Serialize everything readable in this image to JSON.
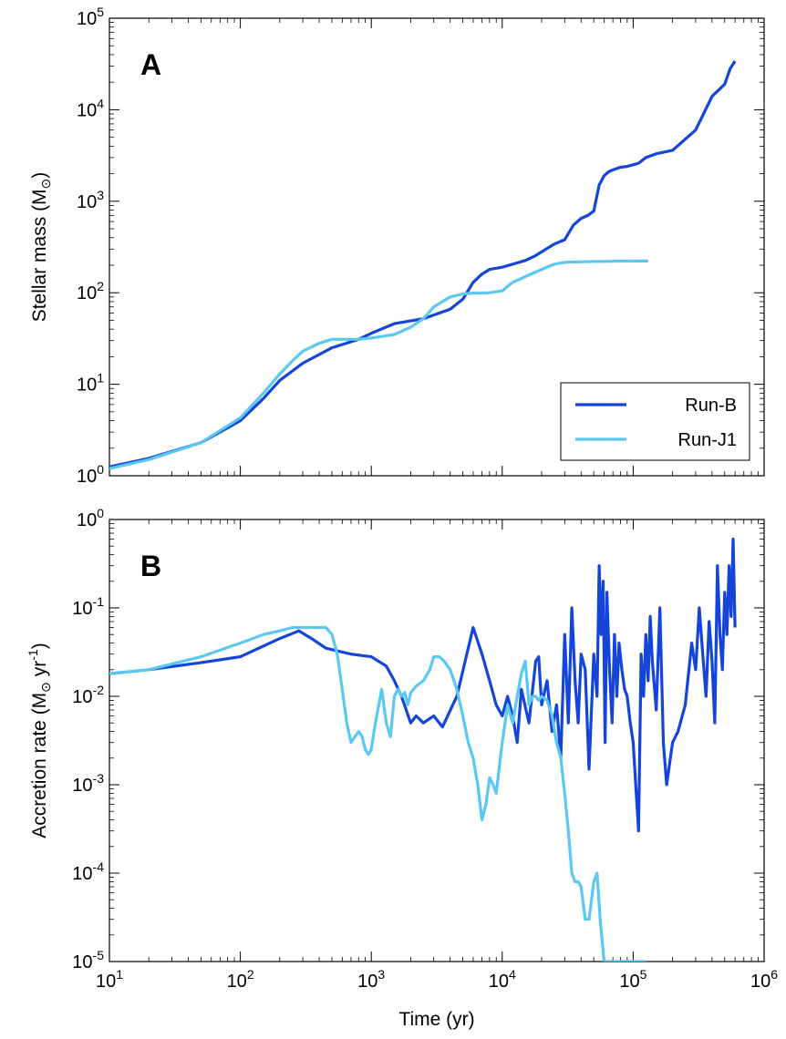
{
  "chart_data": [
    {
      "type": "line",
      "panel_label": "A",
      "xlabel": "",
      "ylabel_main": "Stellar mass (M",
      "ylabel_sub": "⊙",
      "ylabel_end": ")",
      "xscale": "log",
      "yscale": "log",
      "xlim": [
        10,
        1000000
      ],
      "ylim": [
        1,
        100000
      ],
      "yticks": [
        {
          "base": "10",
          "exp": "0"
        },
        {
          "base": "10",
          "exp": "1"
        },
        {
          "base": "10",
          "exp": "2"
        },
        {
          "base": "10",
          "exp": "3"
        },
        {
          "base": "10",
          "exp": "4"
        },
        {
          "base": "10",
          "exp": "5"
        }
      ],
      "legend_position": "bottom-right",
      "series": [
        {
          "name": "Run-B",
          "color": "#1444d8",
          "x": [
            10,
            20,
            50,
            100,
            150,
            200,
            300,
            500,
            800,
            1000,
            1500,
            2500,
            4000,
            5000,
            6000,
            7000,
            8000,
            10000,
            12000,
            15000,
            18000,
            20000,
            25000,
            30000,
            35000,
            40000,
            45000,
            50000,
            55000,
            60000,
            65000,
            70000,
            80000,
            90000,
            100000,
            110000,
            125000,
            150000,
            200000,
            300000,
            400000,
            500000,
            550000,
            600000
          ],
          "y": [
            1.25,
            1.55,
            2.3,
            4.0,
            7.0,
            11,
            17,
            25,
            31,
            36,
            46,
            52,
            66,
            85,
            130,
            160,
            180,
            190,
            205,
            225,
            255,
            280,
            340,
            380,
            550,
            650,
            700,
            780,
            1500,
            1900,
            2100,
            2200,
            2350,
            2400,
            2500,
            2600,
            3000,
            3300,
            3600,
            6000,
            14000,
            19000,
            28000,
            34000
          ]
        },
        {
          "name": "Run-J1",
          "color": "#5cc8f2",
          "x": [
            10,
            20,
            50,
            100,
            150,
            200,
            250,
            300,
            400,
            500,
            600,
            800,
            1000,
            1500,
            2000,
            2500,
            3000,
            4000,
            5000,
            6000,
            8000,
            10000,
            12000,
            15000,
            20000,
            25000,
            30000,
            40000,
            60000,
            100000,
            130000
          ],
          "y": [
            1.2,
            1.5,
            2.3,
            4.3,
            8.0,
            13,
            18,
            23,
            28,
            31,
            31,
            31,
            32,
            35,
            42,
            52,
            70,
            90,
            97,
            99,
            100,
            105,
            130,
            150,
            180,
            205,
            215,
            218,
            220,
            222,
            222
          ]
        }
      ]
    },
    {
      "type": "line",
      "panel_label": "B",
      "xlabel": "Time (yr)",
      "ylabel_main": "Accretion rate (M",
      "ylabel_sub": "⊙",
      "ylabel_end": " yr",
      "ylabel_sup": "-1",
      "ylabel_close": ")",
      "xscale": "log",
      "yscale": "log",
      "xlim": [
        10,
        1000000
      ],
      "ylim": [
        1e-05,
        1
      ],
      "xticks": [
        {
          "base": "10",
          "exp": "1"
        },
        {
          "base": "10",
          "exp": "2"
        },
        {
          "base": "10",
          "exp": "3"
        },
        {
          "base": "10",
          "exp": "4"
        },
        {
          "base": "10",
          "exp": "5"
        },
        {
          "base": "10",
          "exp": "6"
        }
      ],
      "yticks": [
        {
          "base": "10",
          "exp": "-5"
        },
        {
          "base": "10",
          "exp": "-4"
        },
        {
          "base": "10",
          "exp": "-3"
        },
        {
          "base": "10",
          "exp": "-2"
        },
        {
          "base": "10",
          "exp": "-1"
        },
        {
          "base": "10",
          "exp": "0"
        }
      ],
      "series": [
        {
          "name": "Run-B",
          "color": "#1444d8",
          "x": [
            10,
            20,
            50,
            100,
            200,
            280,
            350,
            450,
            700,
            1000,
            1300,
            1500,
            1700,
            2000,
            2200,
            2500,
            3000,
            3500,
            4500,
            6000,
            7000,
            8000,
            9000,
            10000,
            11000,
            12000,
            13000,
            14000,
            16000,
            18000,
            19000,
            20000,
            22000,
            24000,
            26000,
            28000,
            30000,
            32000,
            34000,
            36000,
            38000,
            40000,
            43000,
            46000,
            50000,
            53000,
            55000,
            57000,
            59000,
            61000,
            63000,
            66000,
            69000,
            72000,
            75000,
            78000,
            82000,
            86000,
            90000,
            95000,
            100000,
            110000,
            115000,
            120000,
            125000,
            130000,
            135000,
            140000,
            150000,
            160000,
            170000,
            180000,
            200000,
            220000,
            250000,
            280000,
            300000,
            320000,
            340000,
            360000,
            380000,
            400000,
            420000,
            440000,
            460000,
            480000,
            500000,
            520000,
            540000,
            560000,
            580000,
            600000
          ],
          "y": [
            0.018,
            0.02,
            0.024,
            0.028,
            0.045,
            0.055,
            0.045,
            0.035,
            0.03,
            0.028,
            0.022,
            0.015,
            0.01,
            0.005,
            0.006,
            0.005,
            0.006,
            0.0045,
            0.01,
            0.06,
            0.03,
            0.015,
            0.008,
            0.006,
            0.01,
            0.006,
            0.003,
            0.012,
            0.005,
            0.025,
            0.028,
            0.008,
            0.015,
            0.004,
            0.008,
            0.002,
            0.05,
            0.005,
            0.1,
            0.015,
            0.005,
            0.03,
            0.02,
            0.0015,
            0.03,
            0.01,
            0.3,
            0.05,
            0.2,
            0.003,
            0.15,
            0.02,
            0.005,
            0.05,
            0.01,
            0.04,
            0.02,
            0.012,
            0.01,
            0.005,
            0.003,
            0.0003,
            0.03,
            0.01,
            0.05,
            0.015,
            0.08,
            0.025,
            0.007,
            0.1,
            0.003,
            0.001,
            0.003,
            0.004,
            0.008,
            0.04,
            0.02,
            0.1,
            0.03,
            0.01,
            0.07,
            0.025,
            0.005,
            0.3,
            0.05,
            0.02,
            0.15,
            0.05,
            0.3,
            0.08,
            0.6,
            0.06
          ]
        },
        {
          "name": "Run-J1",
          "color": "#5cc8f2",
          "x": [
            10,
            20,
            50,
            100,
            150,
            200,
            250,
            300,
            350,
            400,
            450,
            500,
            550,
            600,
            650,
            700,
            750,
            800,
            850,
            900,
            950,
            1000,
            1050,
            1100,
            1200,
            1300,
            1400,
            1500,
            1600,
            1700,
            1800,
            1900,
            2000,
            2200,
            2500,
            2800,
            3000,
            3300,
            3600,
            4000,
            4500,
            5000,
            5500,
            6000,
            6500,
            7000,
            7500,
            8000,
            8500,
            9000,
            10000,
            11000,
            12000,
            13000,
            14000,
            15000,
            16000,
            17000,
            18000,
            19000,
            20000,
            22000,
            24000,
            26000,
            28000,
            30000,
            32000,
            34000,
            36000,
            38000,
            40000,
            43000,
            46000,
            50000,
            53000,
            56000,
            60000,
            65000,
            70000,
            80000,
            100000,
            125000
          ],
          "y": [
            0.018,
            0.02,
            0.028,
            0.04,
            0.05,
            0.055,
            0.06,
            0.06,
            0.06,
            0.06,
            0.06,
            0.05,
            0.03,
            0.012,
            0.005,
            0.003,
            0.0035,
            0.004,
            0.0035,
            0.0025,
            0.0022,
            0.0025,
            0.004,
            0.006,
            0.012,
            0.005,
            0.0035,
            0.01,
            0.012,
            0.01,
            0.011,
            0.008,
            0.011,
            0.013,
            0.015,
            0.02,
            0.028,
            0.028,
            0.025,
            0.02,
            0.012,
            0.006,
            0.003,
            0.002,
            0.001,
            0.0004,
            0.0006,
            0.0012,
            0.001,
            0.0008,
            0.003,
            0.008,
            0.005,
            0.01,
            0.018,
            0.025,
            0.008,
            0.01,
            0.01,
            0.009,
            0.01,
            0.009,
            0.006,
            0.003,
            0.002,
            0.0008,
            0.0003,
            0.0001,
            8e-05,
            8e-05,
            7e-05,
            3e-05,
            3e-05,
            8e-05,
            0.0001,
            3e-05,
            1e-05,
            1e-05,
            1e-05,
            1e-05,
            1e-05,
            1e-05
          ]
        }
      ]
    }
  ]
}
